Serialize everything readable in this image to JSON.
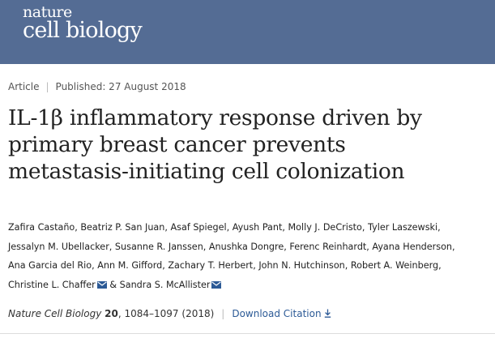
{
  "header": {
    "logo_line1": "nature",
    "logo_line2": "cell biology",
    "bg_color": "#546c94"
  },
  "article_meta": {
    "type": "Article",
    "published": "Published: 27 August 2018"
  },
  "title_lines": [
    "IL-1β inflammatory response driven by",
    "primary breast cancer prevents",
    "metastasis-initiating cell colonization"
  ],
  "authors_lines": [
    [
      "Zafira Castaño,",
      "Beatriz P. San Juan,",
      "Asaf Spiegel,",
      "Ayush Pant,",
      "Molly J. DeCristo,",
      "Tyler Laszewski,"
    ],
    [
      "Jessalyn M. Ubellacker,",
      "Susanne R. Janssen,",
      "Anushka Dongre,",
      "Ferenc Reinhardt,",
      "Ayana Henderson,"
    ],
    [
      "Ana Garcia del Rio,",
      "Ann M. Gifford,",
      "Zachary T. Herbert,",
      "John N. Hutchinson,",
      "Robert A. Weinberg,"
    ]
  ],
  "corresponding": {
    "author1": "Christine L. Chaffer",
    "joiner": "&",
    "author2": "Sandra S. McAllister",
    "icon": "mail-icon"
  },
  "citation": {
    "journal": "Nature Cell Biology",
    "volume": "20",
    "pages": ", 1084–1097 (2018)",
    "download_label": "Download Citation",
    "download_icon": "download-icon",
    "link_color": "#2c5a96"
  }
}
